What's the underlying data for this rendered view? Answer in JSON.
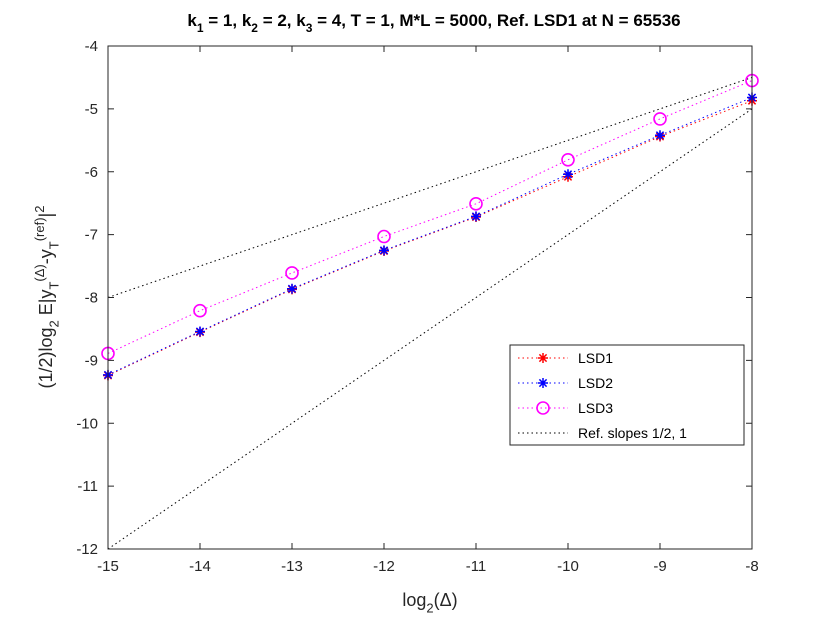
{
  "chart_data": {
    "type": "line",
    "title": "k<sub>1</sub> = 1, k<sub>2</sub> = 2, k<sub>3</sub> = 4, T = 1, M*L  = 5000, Ref. LSD1 at N = 65536",
    "xlabel": "log<sub>2</sub>(Δ)",
    "ylabel": "(1/2)log<sub>2</sub> E|y<sub>T</sub><sup>(Δ)</sup>-y<sub>T</sub><sup>(ref)</sup>|<sup>2</sup>",
    "xlim": [
      -15,
      -8
    ],
    "ylim": [
      -12,
      -4
    ],
    "xticks": [
      -15,
      -14,
      -13,
      -12,
      -11,
      -10,
      -9,
      -8
    ],
    "yticks": [
      -12,
      -11,
      -10,
      -9,
      -8,
      -7,
      -6,
      -5,
      -4
    ],
    "x": [
      -15,
      -14,
      -13,
      -12,
      -11,
      -10,
      -9,
      -8
    ],
    "series": [
      {
        "name": "LSD1",
        "color": "#ff0000",
        "marker": "asterisk",
        "values": [
          -9.24,
          -8.55,
          -7.87,
          -7.26,
          -6.72,
          -6.08,
          -5.44,
          -4.87
        ]
      },
      {
        "name": "LSD2",
        "color": "#0000ff",
        "marker": "asterisk",
        "values": [
          -9.23,
          -8.54,
          -7.86,
          -7.25,
          -6.71,
          -6.04,
          -5.42,
          -4.82
        ]
      },
      {
        "name": "LSD3",
        "color": "#ff00ff",
        "marker": "circle",
        "values": [
          -8.89,
          -8.21,
          -7.61,
          -7.03,
          -6.51,
          -5.81,
          -5.16,
          -4.55
        ]
      }
    ],
    "reference_lines": {
      "name": "Ref. slopes 1/2, 1",
      "color": "#000000",
      "lines": [
        {
          "slope": "1/2",
          "points": [
            [
              -15,
              -8
            ],
            [
              -8,
              -4.5
            ]
          ]
        },
        {
          "slope": "1",
          "points": [
            [
              -15,
              -12
            ],
            [
              -8,
              -5
            ]
          ]
        }
      ]
    },
    "legend": {
      "position": "lower-right"
    }
  }
}
